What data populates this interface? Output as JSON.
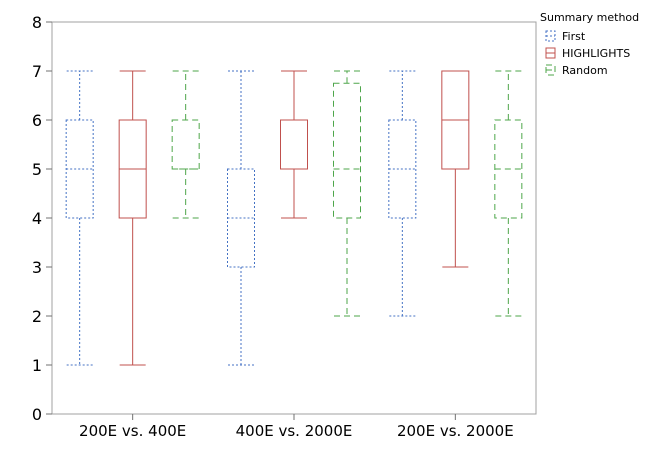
{
  "chart_data": {
    "type": "box",
    "categories": [
      "200E vs. 400E",
      "400E vs. 2000E",
      "200E vs. 2000E"
    ],
    "ylim": [
      0,
      8
    ],
    "yticks": [
      0,
      1,
      2,
      3,
      4,
      5,
      6,
      7,
      8
    ],
    "grid": false,
    "legend": {
      "title": "Summary method",
      "placement": "top-right"
    },
    "series": [
      {
        "name": "First",
        "color": "#4472c4",
        "line_style": "dotted",
        "boxes": [
          {
            "min": 1,
            "q1": 4,
            "median": 5,
            "q3": 6,
            "max": 7
          },
          {
            "min": 1,
            "q1": 3,
            "median": 4,
            "q3": 5,
            "max": 7
          },
          {
            "min": 2,
            "q1": 4,
            "median": 5,
            "q3": 6,
            "max": 7
          }
        ]
      },
      {
        "name": "HIGHLIGHTS",
        "color": "#c0504d",
        "line_style": "solid",
        "boxes": [
          {
            "min": 1,
            "q1": 4,
            "median": 5,
            "q3": 6,
            "max": 7
          },
          {
            "min": 4,
            "q1": 5,
            "median": 5,
            "q3": 6,
            "max": 7
          },
          {
            "min": 3,
            "q1": 5,
            "median": 6,
            "q3": 7,
            "max": 7
          }
        ]
      },
      {
        "name": "Random",
        "color": "#4ea64a",
        "line_style": "dashed",
        "boxes": [
          {
            "min": 4,
            "q1": 5,
            "median": 5,
            "q3": 6,
            "max": 7
          },
          {
            "min": 2,
            "q1": 4,
            "median": 5,
            "q3": 6.75,
            "max": 7
          },
          {
            "min": 2,
            "q1": 4,
            "median": 5,
            "q3": 6,
            "max": 7
          }
        ]
      }
    ]
  }
}
